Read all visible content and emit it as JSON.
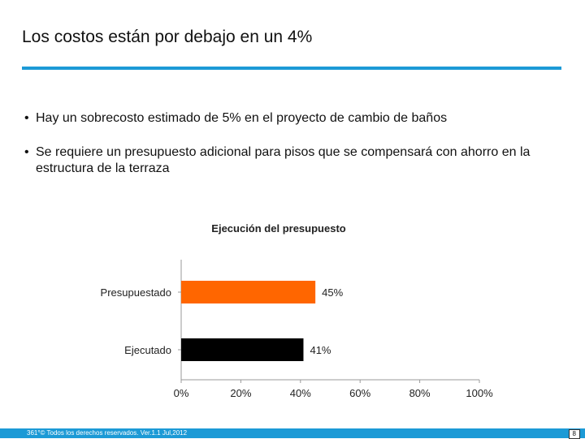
{
  "slide": {
    "title": "Los costos están por debajo en un 4%",
    "bullets": [
      "Hay un sobrecosto estimado de 5% en el proyecto de cambio de baños",
      "Se requiere un presupuesto adicional para pisos que se compensará con ahorro en la estructura de la terraza"
    ],
    "bullet_glyph": "•"
  },
  "chart_data": {
    "type": "bar",
    "orientation": "horizontal",
    "title": "Ejecución del presupuesto",
    "categories": [
      "Presupuestado",
      "Ejecutado"
    ],
    "values": [
      45,
      41
    ],
    "value_labels": [
      "45%",
      "41%"
    ],
    "bar_colors": [
      "#ff6600",
      "#000000"
    ],
    "xlim": [
      0,
      100
    ],
    "xticks": [
      0,
      20,
      40,
      60,
      80,
      100
    ],
    "xtick_labels": [
      "0%",
      "20%",
      "40%",
      "60%",
      "80%",
      "100%"
    ],
    "grid": false,
    "legend": "none"
  },
  "footer": {
    "text": "361°© Todos los derechos reservados.  Ver.1.1 Jul,2012",
    "page": "8",
    "color": "#1c9ad6"
  }
}
